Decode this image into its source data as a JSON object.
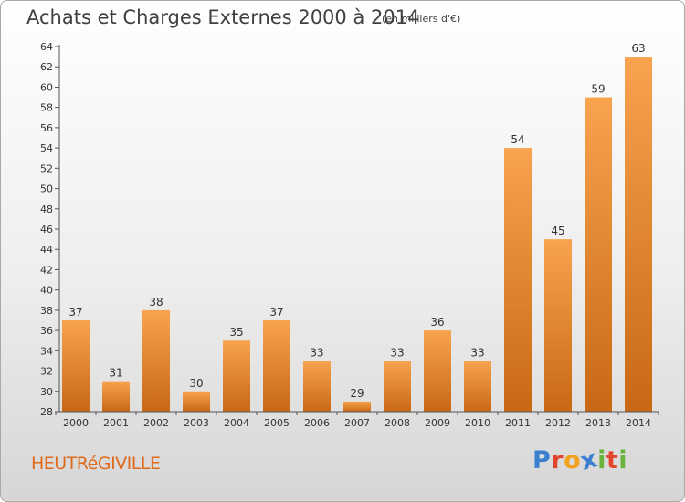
{
  "header": {
    "title": "Achats et Charges Externes 2000 à 2014",
    "units": "(en milliers d'€)"
  },
  "footer": {
    "commune": "HEUTRéGIVILLE",
    "brand": "Proxiti",
    "brand_colors": [
      "#3a7fd0",
      "#e2452d",
      "#f3a21d",
      "#3a7fd0",
      "#6ab43c",
      "#e2452d",
      "#6ab43c"
    ]
  },
  "colors": {
    "bar_light": "#f8a34e",
    "bar_dark": "#c96814",
    "text": "#404040",
    "accent": "#e06a1a"
  },
  "chart_data": {
    "type": "bar",
    "title": "Achats et Charges Externes 2000 à 2014",
    "subtitle": "(en milliers d'€)",
    "categories": [
      "2000",
      "2001",
      "2002",
      "2003",
      "2004",
      "2005",
      "2006",
      "2007",
      "2008",
      "2009",
      "2010",
      "2011",
      "2012",
      "2013",
      "2014"
    ],
    "values": [
      37,
      31,
      38,
      30,
      35,
      37,
      33,
      29,
      33,
      36,
      33,
      54,
      45,
      59,
      63
    ],
    "ylim": [
      28,
      64
    ],
    "yticks": [
      28,
      30,
      32,
      34,
      36,
      38,
      40,
      42,
      44,
      46,
      48,
      50,
      52,
      54,
      56,
      58,
      60,
      62,
      64
    ],
    "grid": false,
    "legend": "none"
  }
}
